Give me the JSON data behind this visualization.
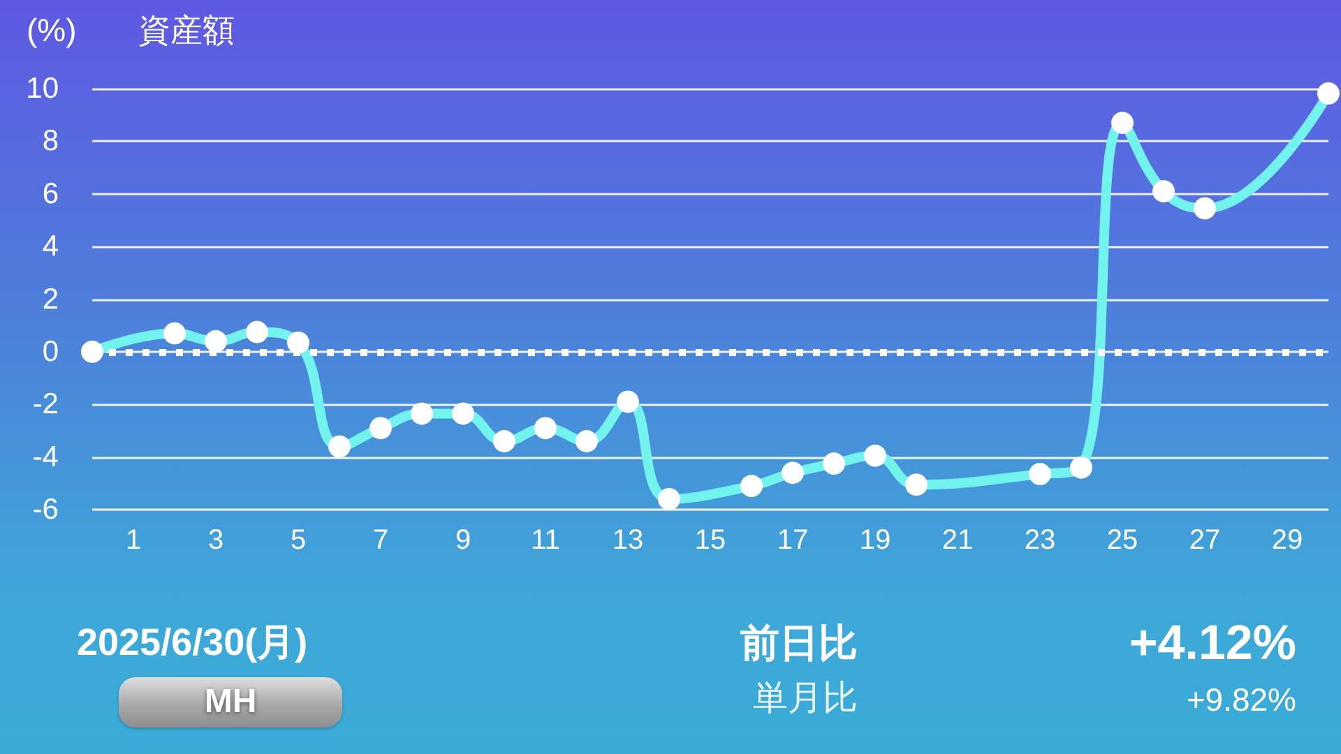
{
  "chart_data": {
    "type": "line",
    "title": "資産額",
    "ylabel": "(%)",
    "x": [
      0,
      2,
      3,
      4,
      5,
      6,
      7,
      8,
      9,
      10,
      11,
      12,
      13,
      14,
      16,
      17,
      18,
      19,
      20,
      23,
      24,
      25,
      26,
      27,
      30
    ],
    "series": [
      {
        "color": "#72f3ee",
        "values": [
          0,
          0.7,
          0.4,
          0.75,
          0.35,
          -3.6,
          -2.9,
          -2.35,
          -2.35,
          -3.4,
          -2.9,
          -3.4,
          -1.9,
          -5.6,
          -5.1,
          -4.6,
          -4.25,
          -3.95,
          -5.05,
          -4.65,
          -4.4,
          8.7,
          6.1,
          5.45,
          9.82
        ]
      }
    ],
    "xlim": [
      0,
      30
    ],
    "xticks": [
      1,
      3,
      5,
      7,
      9,
      11,
      13,
      15,
      17,
      19,
      21,
      23,
      25,
      27,
      29
    ],
    "ylim": [
      -6,
      10
    ],
    "yticks": [
      -6,
      -4,
      -2,
      0,
      2,
      4,
      6,
      8,
      10
    ],
    "grid": "y",
    "marker": "circle",
    "ref_lines": [
      {
        "axis": "y",
        "value": 0,
        "color": "#ffffff",
        "line_style": "dotted"
      }
    ],
    "annotations": [
      "2025/6/30(月)",
      "MH",
      "前日比",
      "+4.12%",
      "単月比",
      "+9.82%"
    ]
  }
}
